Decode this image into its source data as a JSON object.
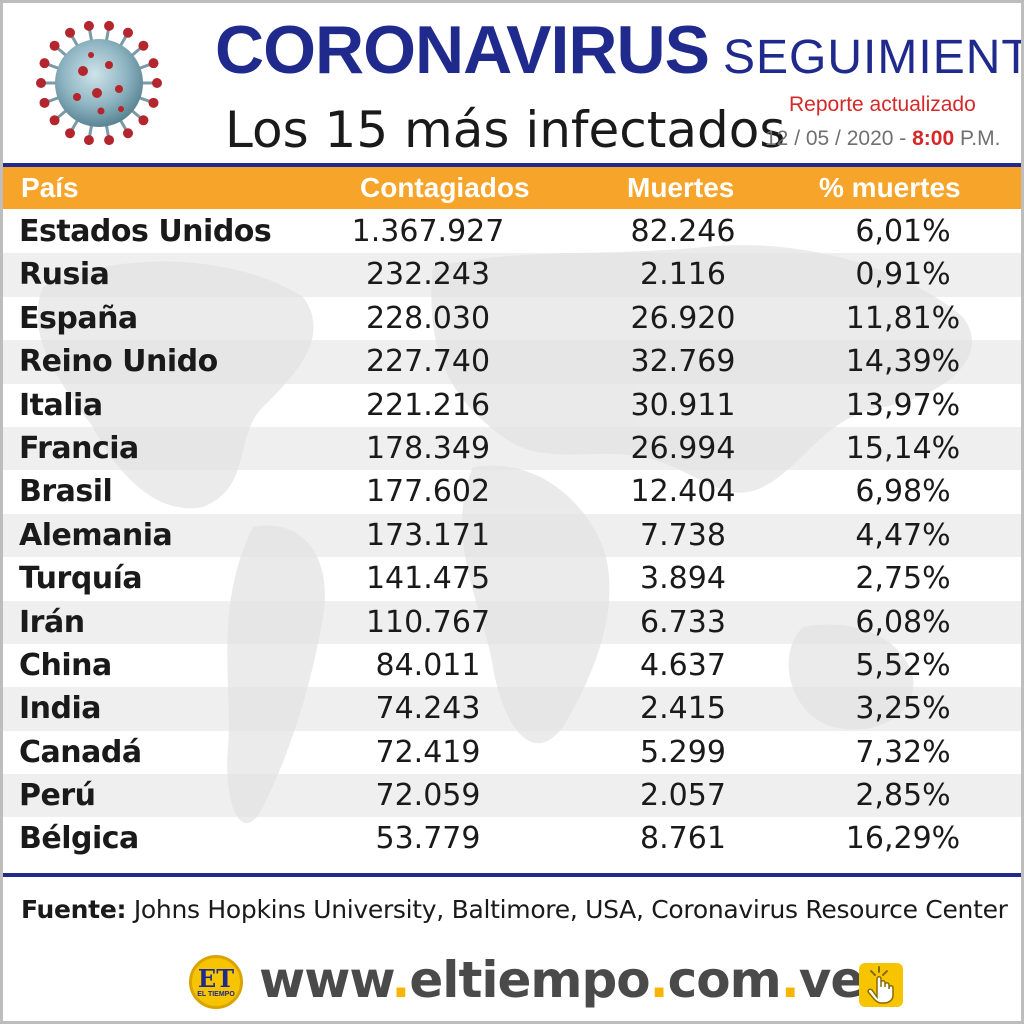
{
  "header": {
    "title_main": "Coronavirus",
    "title_sub": "SEGUIMIENTO",
    "subtitle": "Los 15 más infectados",
    "report_label": "Reporte actualizado",
    "report_date": "12 / 05 / 2020 -",
    "report_hour": "8:00",
    "report_ampm": "P.M."
  },
  "table": {
    "columns": [
      "País",
      "Contagiados",
      "Muertes",
      "% muertes"
    ],
    "rows": [
      {
        "country": "Estados Unidos",
        "cases": "1.367.927",
        "deaths": "82.246",
        "pct": "6,01%"
      },
      {
        "country": "Rusia",
        "cases": "232.243",
        "deaths": "2.116",
        "pct": "0,91%"
      },
      {
        "country": "España",
        "cases": "228.030",
        "deaths": "26.920",
        "pct": "11,81%"
      },
      {
        "country": "Reino Unido",
        "cases": "227.740",
        "deaths": "32.769",
        "pct": "14,39%"
      },
      {
        "country": "Italia",
        "cases": "221.216",
        "deaths": "30.911",
        "pct": "13,97%"
      },
      {
        "country": "Francia",
        "cases": "178.349",
        "deaths": "26.994",
        "pct": "15,14%"
      },
      {
        "country": "Brasil",
        "cases": "177.602",
        "deaths": "12.404",
        "pct": "6,98%"
      },
      {
        "country": "Alemania",
        "cases": "173.171",
        "deaths": "7.738",
        "pct": "4,47%"
      },
      {
        "country": "Turquía",
        "cases": "141.475",
        "deaths": "3.894",
        "pct": "2,75%"
      },
      {
        "country": "Irán",
        "cases": "110.767",
        "deaths": "6.733",
        "pct": "6,08%"
      },
      {
        "country": "China",
        "cases": "84.011",
        "deaths": "4.637",
        "pct": "5,52%"
      },
      {
        "country": "India",
        "cases": "74.243",
        "deaths": "2.415",
        "pct": "3,25%"
      },
      {
        "country": "Canadá",
        "cases": "72.419",
        "deaths": "5.299",
        "pct": "7,32%"
      },
      {
        "country": "Perú",
        "cases": "72.059",
        "deaths": "2.057",
        "pct": "2,85%"
      },
      {
        "country": "Bélgica",
        "cases": "53.779",
        "deaths": "8.761",
        "pct": "16,29%"
      }
    ]
  },
  "footer": {
    "source_label": "Fuente:",
    "source_text": "Johns Hopkins University, Baltimore, USA, Coronavirus Resource Center",
    "logo_text": "ET",
    "logo_small": "EL TIEMPO",
    "url_parts": [
      "www",
      ".",
      "eltiempo",
      ".",
      "com",
      ".",
      "ve"
    ]
  },
  "colors": {
    "title_blue": "#1f2a8c",
    "header_orange": "#f7a52a",
    "accent_red": "#d62828",
    "brand_yellow": "#f7c400"
  },
  "icons": [
    "coronavirus-illustration",
    "world-map-background",
    "touch-hand-icon"
  ]
}
